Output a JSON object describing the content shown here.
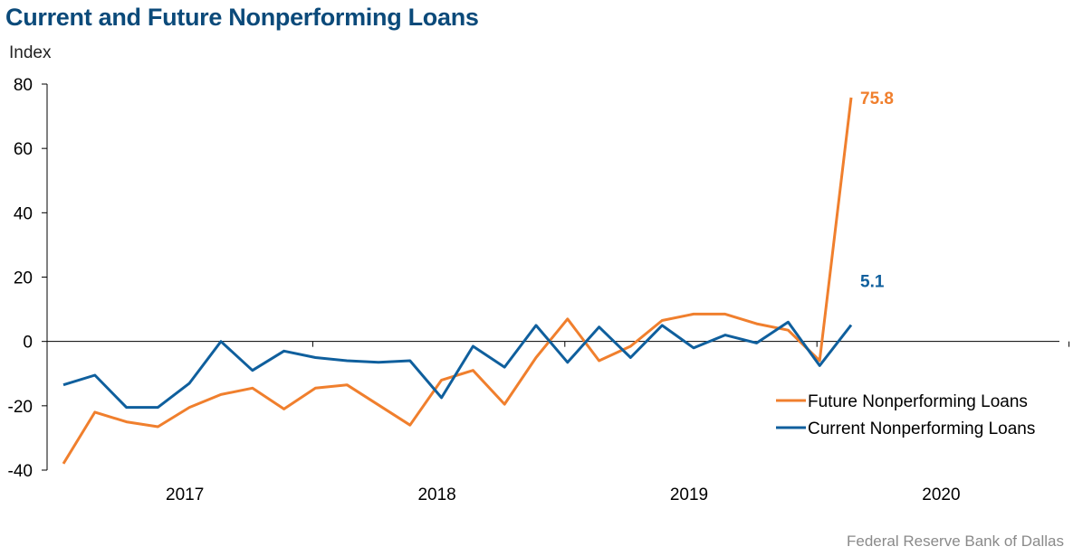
{
  "title": "Current and Future Nonperforming Loans",
  "source": "Federal Reserve Bank of Dallas",
  "colors": {
    "future": "#f07f2d",
    "current": "#0f5f9d",
    "axis": "#000000",
    "title": "#0b4a7a"
  },
  "chart_data": {
    "type": "line",
    "title": "Current and Future Nonperforming Loans",
    "ylabel": "Index",
    "xlabel": "",
    "ylim": [
      -40,
      80
    ],
    "yticks": [
      -40,
      -20,
      0,
      20,
      40,
      60,
      80
    ],
    "xlim": [
      2016.5,
      2020.5
    ],
    "year_labels": [
      "2017",
      "2018",
      "2019",
      "2020"
    ],
    "year_positions": [
      2017.0,
      2018.0,
      2019.0,
      2020.0
    ],
    "grid": false,
    "legend": "right",
    "series": [
      {
        "name": "Future Nonperforming Loans",
        "color": "#f07f2d",
        "end_label": "75.8",
        "x": [
          2016.5,
          2016.625,
          2016.75,
          2016.875,
          2017.0,
          2017.125,
          2017.25,
          2017.375,
          2017.5,
          2017.625,
          2017.875,
          2018.0,
          2018.125,
          2018.25,
          2018.375,
          2018.5,
          2018.625,
          2018.75,
          2018.875,
          2019.0,
          2019.125,
          2019.25,
          2019.375,
          2019.5,
          2019.625
        ],
        "values": [
          -38,
          -22,
          -25,
          -26.5,
          -20.5,
          -16.5,
          -14.5,
          -21,
          -14.5,
          -13.5,
          -26,
          -12,
          -9,
          -19.5,
          -5,
          7,
          -6,
          -1.5,
          6.5,
          8.5,
          8.5,
          5.5,
          3.5,
          -6,
          75.8
        ]
      },
      {
        "name": "Current Nonperforming Loans",
        "color": "#0f5f9d",
        "end_label": "5.1",
        "x": [
          2016.5,
          2016.625,
          2016.75,
          2016.875,
          2017.0,
          2017.125,
          2017.25,
          2017.375,
          2017.5,
          2017.625,
          2017.75,
          2017.875,
          2018.0,
          2018.125,
          2018.25,
          2018.375,
          2018.5,
          2018.625,
          2018.75,
          2018.875,
          2019.0,
          2019.125,
          2019.25,
          2019.375,
          2019.5,
          2019.625
        ],
        "values": [
          -13.5,
          -10.5,
          -20.5,
          -20.5,
          -13,
          0,
          -9,
          -3,
          -5,
          -6,
          -6.5,
          -6,
          -17.5,
          -1.5,
          -8,
          5,
          -6.5,
          4.5,
          -5,
          5,
          -2,
          2,
          -0.5,
          6,
          -7.5,
          5.1
        ]
      }
    ]
  }
}
